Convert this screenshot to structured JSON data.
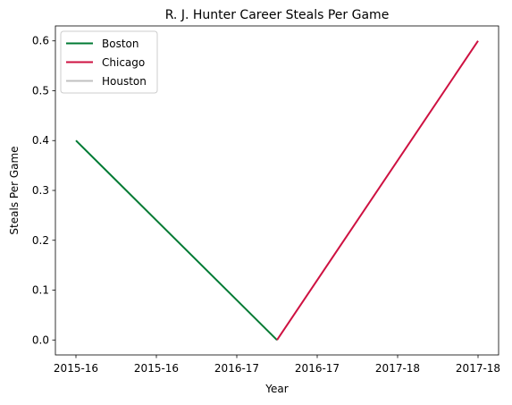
{
  "chart_data": {
    "type": "line",
    "title": "R. J. Hunter Career Steals Per Game",
    "xlabel": "Year",
    "ylabel": "Steals Per Game",
    "xtick_labels": [
      "2015-16",
      "2015-16",
      "2016-17",
      "2016-17",
      "2017-18",
      "2017-18"
    ],
    "yticks": [
      0.0,
      0.1,
      0.2,
      0.3,
      0.4,
      0.5,
      0.6
    ],
    "ytick_labels": [
      "0.0",
      "0.1",
      "0.2",
      "0.3",
      "0.4",
      "0.5",
      "0.6"
    ],
    "ylim": [
      -0.03,
      0.63
    ],
    "grid": false,
    "legend_position": "top-left",
    "series": [
      {
        "name": "Boston",
        "color": "#007a33",
        "points": [
          {
            "x": "2015-16",
            "y": 0.4
          },
          {
            "x": "2016-17",
            "y": 0.0
          }
        ]
      },
      {
        "name": "Chicago",
        "color": "#ce1141",
        "points": [
          {
            "x": "2016-17",
            "y": 0.0
          },
          {
            "x": "2017-18",
            "y": 0.6
          }
        ]
      },
      {
        "name": "Houston",
        "color": "#c0c0c0",
        "points": []
      }
    ]
  }
}
